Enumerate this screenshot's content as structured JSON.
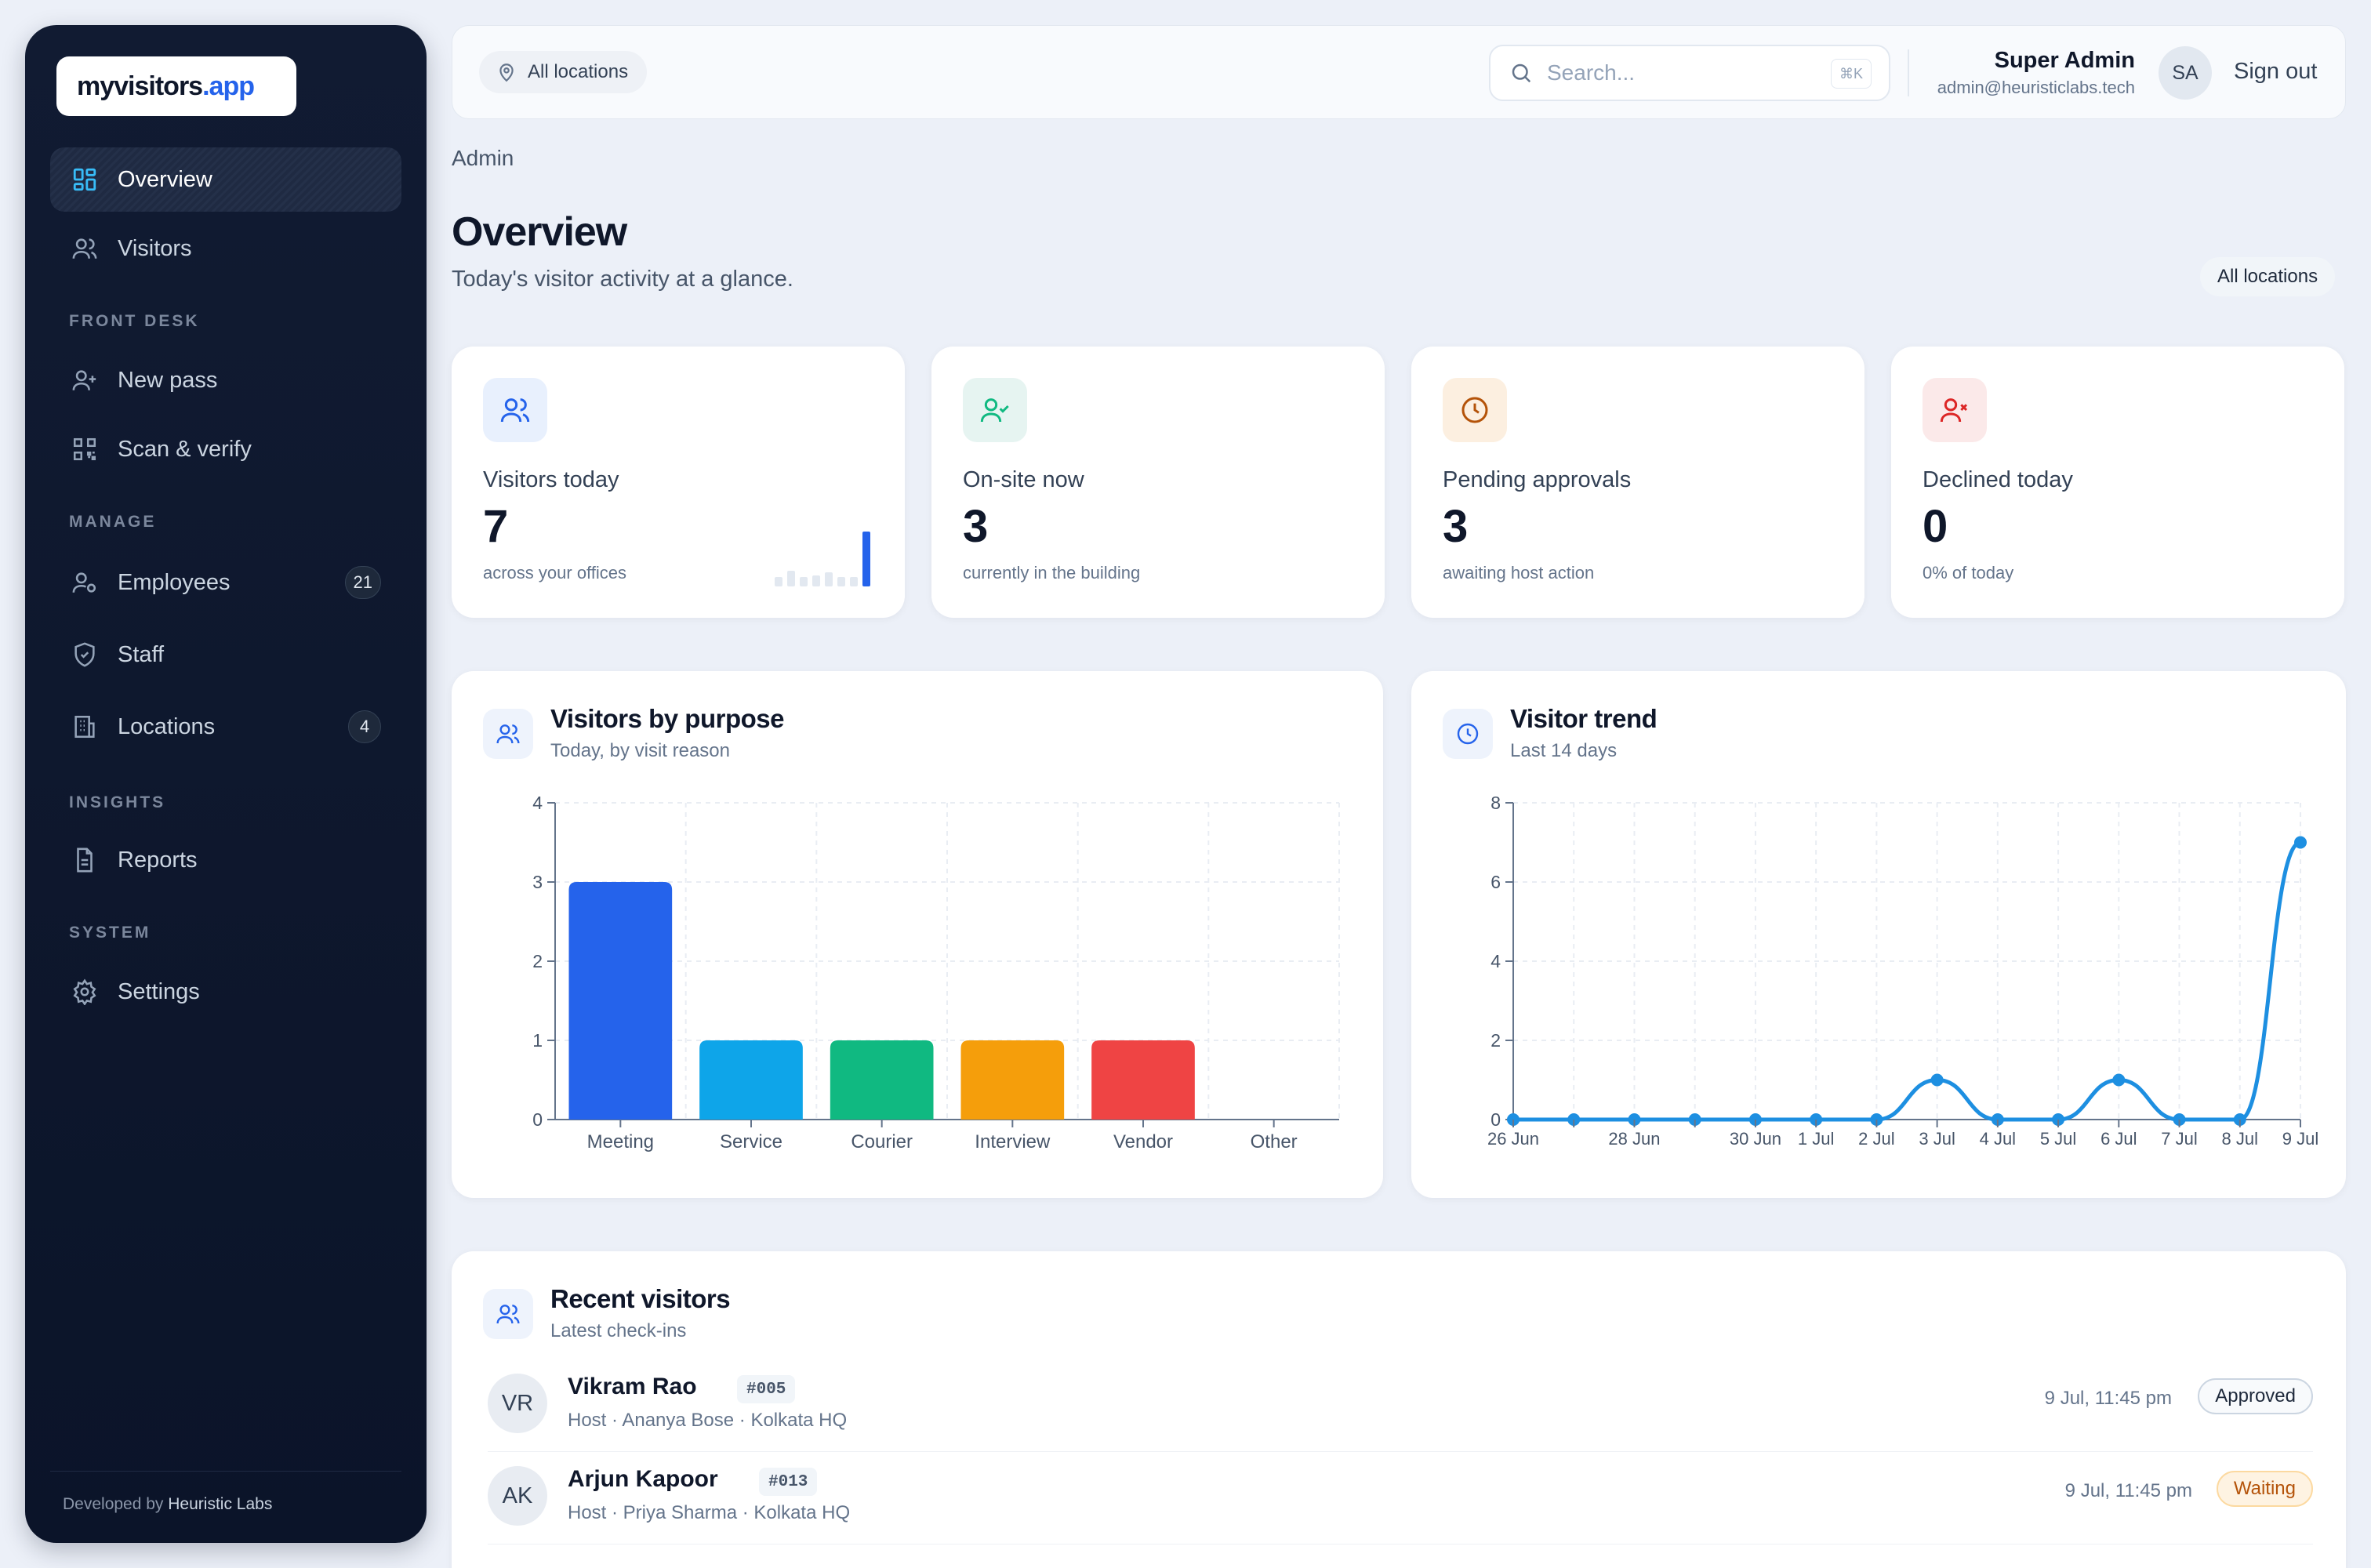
{
  "brand": {
    "part1": "myvisitors",
    "part2": ".app"
  },
  "sidebar": {
    "items": [
      {
        "label": "Overview"
      },
      {
        "label": "Visitors"
      },
      {
        "label": "New pass"
      },
      {
        "label": "Scan & verify"
      },
      {
        "label": "Employees",
        "badge": "21"
      },
      {
        "label": "Staff"
      },
      {
        "label": "Locations",
        "badge": "4"
      },
      {
        "label": "Reports"
      },
      {
        "label": "Settings"
      }
    ],
    "sections": [
      "FRONT DESK",
      "MANAGE",
      "INSIGHTS",
      "SYSTEM"
    ],
    "footer": {
      "prefix": "Developed by",
      "company": "Heuristic Labs"
    }
  },
  "topbar": {
    "location_filter": "All locations",
    "search_placeholder": "Search...",
    "search_shortcut": "⌘K",
    "user_name": "Super Admin",
    "user_email": "admin@heuristiclabs.tech",
    "user_initials": "SA",
    "signout_label": "Sign out"
  },
  "page": {
    "breadcrumb": "Admin",
    "title": "Overview",
    "subtitle": "Today's visitor activity at a glance.",
    "location_pill": "All locations"
  },
  "stats": [
    {
      "label": "Visitors today",
      "value": "7",
      "note": "across your offices",
      "icon": "users-icon",
      "color": "#2563eb"
    },
    {
      "label": "On-site now",
      "value": "3",
      "note": "currently in the building",
      "icon": "user-check-icon",
      "color": "#10b981"
    },
    {
      "label": "Pending approvals",
      "value": "3",
      "note": "awaiting host action",
      "icon": "clock-icon",
      "color": "#b45309"
    },
    {
      "label": "Declined today",
      "value": "0",
      "note": "0% of today",
      "icon": "user-x-icon",
      "color": "#dc2626"
    }
  ],
  "purpose_chart": {
    "title": "Visitors by purpose",
    "subtitle": "Today, by visit reason"
  },
  "trend_chart": {
    "title": "Visitor trend",
    "subtitle": "Last 14 days"
  },
  "chart_data": [
    {
      "type": "bar",
      "categories": [
        "Meeting",
        "Service",
        "Courier",
        "Interview",
        "Vendor",
        "Other"
      ],
      "values": [
        3,
        1,
        1,
        1,
        1,
        0
      ],
      "colors": [
        "#2563eb",
        "#0ea5e9",
        "#10b981",
        "#f59e0b",
        "#ef4444",
        "#8b5cf6"
      ],
      "ylim": [
        0,
        4
      ],
      "yticks": [
        0,
        1,
        2,
        3,
        4
      ],
      "grid": true
    },
    {
      "type": "line",
      "x": [
        "26 Jun",
        "27 Jun",
        "28 Jun",
        "29 Jun",
        "30 Jun",
        "1 Jul",
        "2 Jul",
        "3 Jul",
        "4 Jul",
        "5 Jul",
        "6 Jul",
        "7 Jul",
        "8 Jul",
        "9 Jul"
      ],
      "x_tick_labels": [
        "26 Jun",
        "",
        "28 Jun",
        "",
        "30 Jun",
        "1 Jul",
        "2 Jul",
        "3 Jul",
        "4 Jul",
        "5 Jul",
        "6 Jul",
        "7 Jul",
        "8 Jul",
        "9 Jul"
      ],
      "values": [
        0,
        0,
        0,
        0,
        0,
        0,
        0,
        1,
        0,
        0,
        1,
        0,
        0,
        7
      ],
      "color": "#1d8fe1",
      "ylim": [
        0,
        8
      ],
      "yticks": [
        0,
        2,
        4,
        6,
        8
      ],
      "grid": true
    }
  ],
  "recent": {
    "title": "Recent visitors",
    "subtitle": "Latest check-ins",
    "rows": [
      {
        "initials": "VR",
        "name": "Vikram Rao",
        "code": "#005",
        "meta": "Host · Ananya Bose  ·  Kolkata HQ",
        "time": "9 Jul, 11:45 pm",
        "status": "Approved"
      },
      {
        "initials": "AK",
        "name": "Arjun Kapoor",
        "code": "#013",
        "meta": "Host · Priya Sharma  ·  Kolkata HQ",
        "time": "9 Jul, 11:45 pm",
        "status": "Waiting"
      }
    ]
  }
}
